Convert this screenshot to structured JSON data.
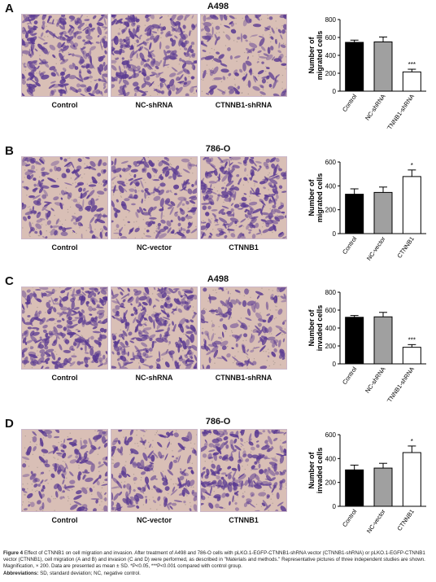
{
  "colors": {
    "bar_control": "#000000",
    "bar_middle": "#a0a0a0",
    "bar_treatment": "#ffffff",
    "micro_background": "#d9bfb6",
    "micro_cells": "#5a3a92"
  },
  "panels": [
    {
      "letter": "A",
      "cell_line": "A498",
      "images": [
        {
          "label": "Control",
          "density": 0.85
        },
        {
          "label": "NC-shRNA",
          "density": 0.85
        },
        {
          "label": "CTNNB1-shRNA",
          "density": 0.3
        }
      ]
    },
    {
      "letter": "B",
      "cell_line": "786-O",
      "images": [
        {
          "label": "Control",
          "density": 0.45
        },
        {
          "label": "NC-vector",
          "density": 0.5
        },
        {
          "label": "CTNNB1",
          "density": 0.75
        }
      ]
    },
    {
      "letter": "C",
      "cell_line": "A498",
      "images": [
        {
          "label": "Control",
          "density": 0.85
        },
        {
          "label": "NC-shRNA",
          "density": 0.85
        },
        {
          "label": "CTNNB1-shRNA",
          "density": 0.35
        }
      ]
    },
    {
      "letter": "D",
      "cell_line": "786-O",
      "images": [
        {
          "label": "Control",
          "density": 0.35
        },
        {
          "label": "NC-vector",
          "density": 0.4
        },
        {
          "label": "CTNNB1",
          "density": 0.7
        }
      ]
    }
  ],
  "chart_data": [
    {
      "type": "bar",
      "ylabel": "Number of migrated cells",
      "ylim": [
        0,
        800
      ],
      "yticks": [
        0,
        200,
        400,
        600,
        800
      ],
      "categories": [
        "Control",
        "NC-shRNA",
        "CTNNB1-shRNA"
      ],
      "values": [
        545,
        550,
        215
      ],
      "errors": [
        25,
        55,
        30
      ],
      "annotations": [
        "",
        "",
        "***"
      ]
    },
    {
      "type": "bar",
      "ylabel": "Number of migrated cells",
      "ylim": [
        0,
        600
      ],
      "yticks": [
        0,
        200,
        400,
        600
      ],
      "categories": [
        "Control",
        "NC-vector",
        "CTNNB1"
      ],
      "values": [
        330,
        345,
        478
      ],
      "errors": [
        45,
        45,
        55
      ],
      "annotations": [
        "",
        "",
        "*"
      ]
    },
    {
      "type": "bar",
      "ylabel": "Number of invaded cells",
      "ylim": [
        0,
        800
      ],
      "yticks": [
        0,
        200,
        400,
        600,
        800
      ],
      "categories": [
        "Control",
        "NC-shRNA",
        "CTNNB1-shRNA"
      ],
      "values": [
        520,
        525,
        185
      ],
      "errors": [
        20,
        50,
        30
      ],
      "annotations": [
        "",
        "",
        "***"
      ]
    },
    {
      "type": "bar",
      "ylabel": "Number of invaded cells",
      "ylim": [
        0,
        600
      ],
      "yticks": [
        0,
        200,
        400,
        600
      ],
      "categories": [
        "Control",
        "NC-vector",
        "CTNNB1"
      ],
      "values": [
        305,
        320,
        450
      ],
      "errors": [
        40,
        40,
        55
      ],
      "annotations": [
        "",
        "",
        "*"
      ]
    }
  ],
  "caption": {
    "figure_label": "Figure 4",
    "text": "Effect of CTNNB1 on cell migration and invasion. After treatment of A498 and 786-O cells with pLKO.1-EGFP-CTNNB1-shRNA vector (CTNNB1-shRNA) or pLKO.1-EGFP-CTNNB1 vector (CTNNB1), cell migration (A and B) and invasion (C and D) were performed, as described in \"Materials and methods.\" Representative pictures of three independent studies are shown. Magnification, × 200. Data are presented as mean ± SD. *P<0.05, ***P<0.001 compared with control group.",
    "abbr_label": "Abbreviations:",
    "abbr_text": "SD, standard deviation; NC, negative control."
  }
}
